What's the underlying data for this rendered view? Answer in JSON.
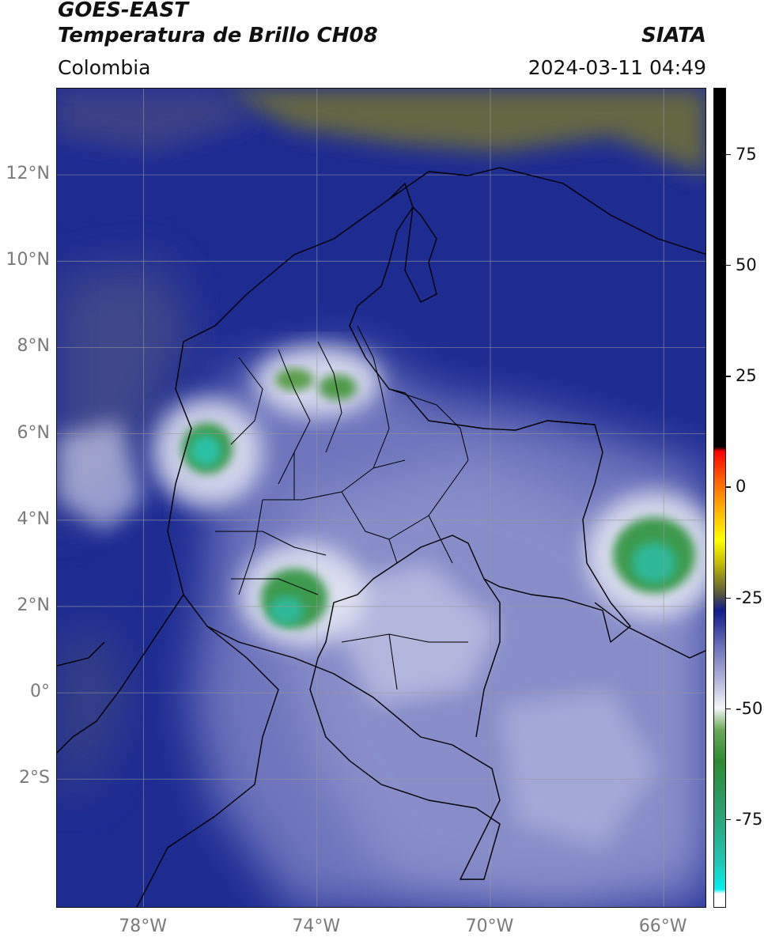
{
  "header": {
    "satellite": "GOES-EAST",
    "product": "Temperatura de Brillo CH08",
    "region": "Colombia",
    "agency": "SIATA",
    "datetime": "2024-03-11 04:49"
  },
  "map": {
    "extent": {
      "lon_min": -80,
      "lon_max": -65,
      "lat_min": -5,
      "lat_max": 14
    },
    "lat_ticks": [
      {
        "value": 12,
        "label": "12°N"
      },
      {
        "value": 10,
        "label": "10°N"
      },
      {
        "value": 8,
        "label": "8°N"
      },
      {
        "value": 6,
        "label": "6°N"
      },
      {
        "value": 4,
        "label": "4°N"
      },
      {
        "value": 2,
        "label": "2°N"
      },
      {
        "value": 0,
        "label": "0°"
      },
      {
        "value": -2,
        "label": "2°S"
      }
    ],
    "lon_ticks": [
      {
        "value": -78,
        "label": "78°W"
      },
      {
        "value": -74,
        "label": "74°W"
      },
      {
        "value": -70,
        "label": "70°W"
      },
      {
        "value": -66,
        "label": "66°W"
      }
    ],
    "colors": {
      "background_mid": "#2a3a9a",
      "land_light": "#8f93cc",
      "cold_green": "#3e9a4e",
      "coldest_teal": "#29c0a5",
      "dry_olive": "#6d6e3a",
      "grid": "#9a9a9a"
    }
  },
  "colorbar": {
    "range": [
      -95,
      90
    ],
    "ticks": [
      {
        "value": 75,
        "label": "75"
      },
      {
        "value": 50,
        "label": "50"
      },
      {
        "value": 25,
        "label": "25"
      },
      {
        "value": 0,
        "label": "0"
      },
      {
        "value": -25,
        "label": "-25"
      },
      {
        "value": -50,
        "label": "-50"
      },
      {
        "value": -75,
        "label": "-75"
      }
    ],
    "stops": [
      {
        "value": -95,
        "color": "#ffffff"
      },
      {
        "value": -92,
        "color": "#ffffff"
      },
      {
        "value": -91,
        "color": "#00f0f0"
      },
      {
        "value": -85,
        "color": "#1ec8b4"
      },
      {
        "value": -75,
        "color": "#2aa47a"
      },
      {
        "value": -62,
        "color": "#2e8a32"
      },
      {
        "value": -55,
        "color": "#6aa858"
      },
      {
        "value": -50,
        "color": "#f4f6f8"
      },
      {
        "value": -44,
        "color": "#b6b8dc"
      },
      {
        "value": -36,
        "color": "#6a70b8"
      },
      {
        "value": -28,
        "color": "#121c8a"
      },
      {
        "value": -24,
        "color": "#5a5a3a"
      },
      {
        "value": -17,
        "color": "#c8c000"
      },
      {
        "value": -12,
        "color": "#ffff00"
      },
      {
        "value": -5,
        "color": "#ffb000"
      },
      {
        "value": 2,
        "color": "#ff5a00"
      },
      {
        "value": 8,
        "color": "#ff0000"
      },
      {
        "value": 9,
        "color": "#000000"
      },
      {
        "value": 90,
        "color": "#000000"
      }
    ]
  }
}
